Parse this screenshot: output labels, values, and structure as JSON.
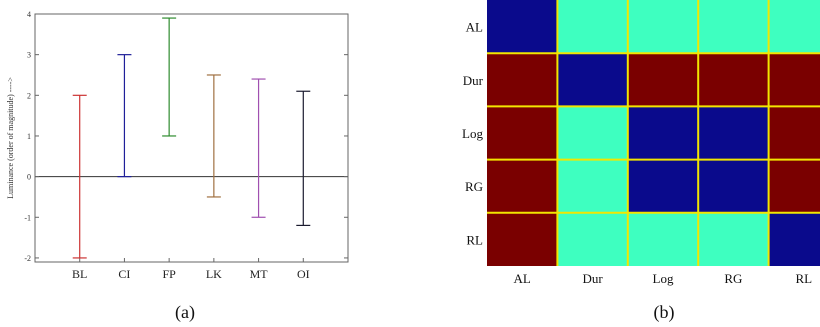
{
  "colors": {
    "error_bars": [
      "#cc3333",
      "#1f1f99",
      "#2e8b2e",
      "#a07040",
      "#a050b0",
      "#1a1a2e"
    ],
    "heat_levels": {
      "0": "#0a0a8c",
      "1": "#3effc0",
      "2": "#7a0000"
    },
    "grid_line": "#f2e600",
    "axis": "#555555"
  },
  "chart_data": [
    {
      "type": "errorbar",
      "panel_label": "(a)",
      "ylabel": "Luminance (order of magnitude) ---->",
      "xlabel": "",
      "ylim": [
        -2.1,
        4
      ],
      "y_ticks": [
        "-2",
        "-1",
        "0",
        "1",
        "2",
        "3",
        "4"
      ],
      "zero_line": 0,
      "categories": [
        "BL",
        "CI",
        "FP",
        "LK",
        "MT",
        "OI"
      ],
      "ranges": [
        {
          "low": -2,
          "high": 2
        },
        {
          "low": 0,
          "high": 3
        },
        {
          "low": 1,
          "high": 3.9
        },
        {
          "low": -0.5,
          "high": 2.5
        },
        {
          "low": -1,
          "high": 2.4
        },
        {
          "low": -1.2,
          "high": 2.1
        }
      ]
    },
    {
      "type": "heatmap",
      "panel_label": "(b)",
      "rows": [
        "AL",
        "Dur",
        "Log",
        "RG",
        "RL"
      ],
      "cols": [
        "AL",
        "Dur",
        "Log",
        "RG",
        "RL"
      ],
      "matrix": [
        [
          0,
          1,
          1,
          1,
          1
        ],
        [
          2,
          0,
          2,
          2,
          2
        ],
        [
          2,
          1,
          0,
          0,
          2
        ],
        [
          2,
          1,
          0,
          0,
          2
        ],
        [
          2,
          1,
          1,
          1,
          0
        ]
      ]
    }
  ]
}
